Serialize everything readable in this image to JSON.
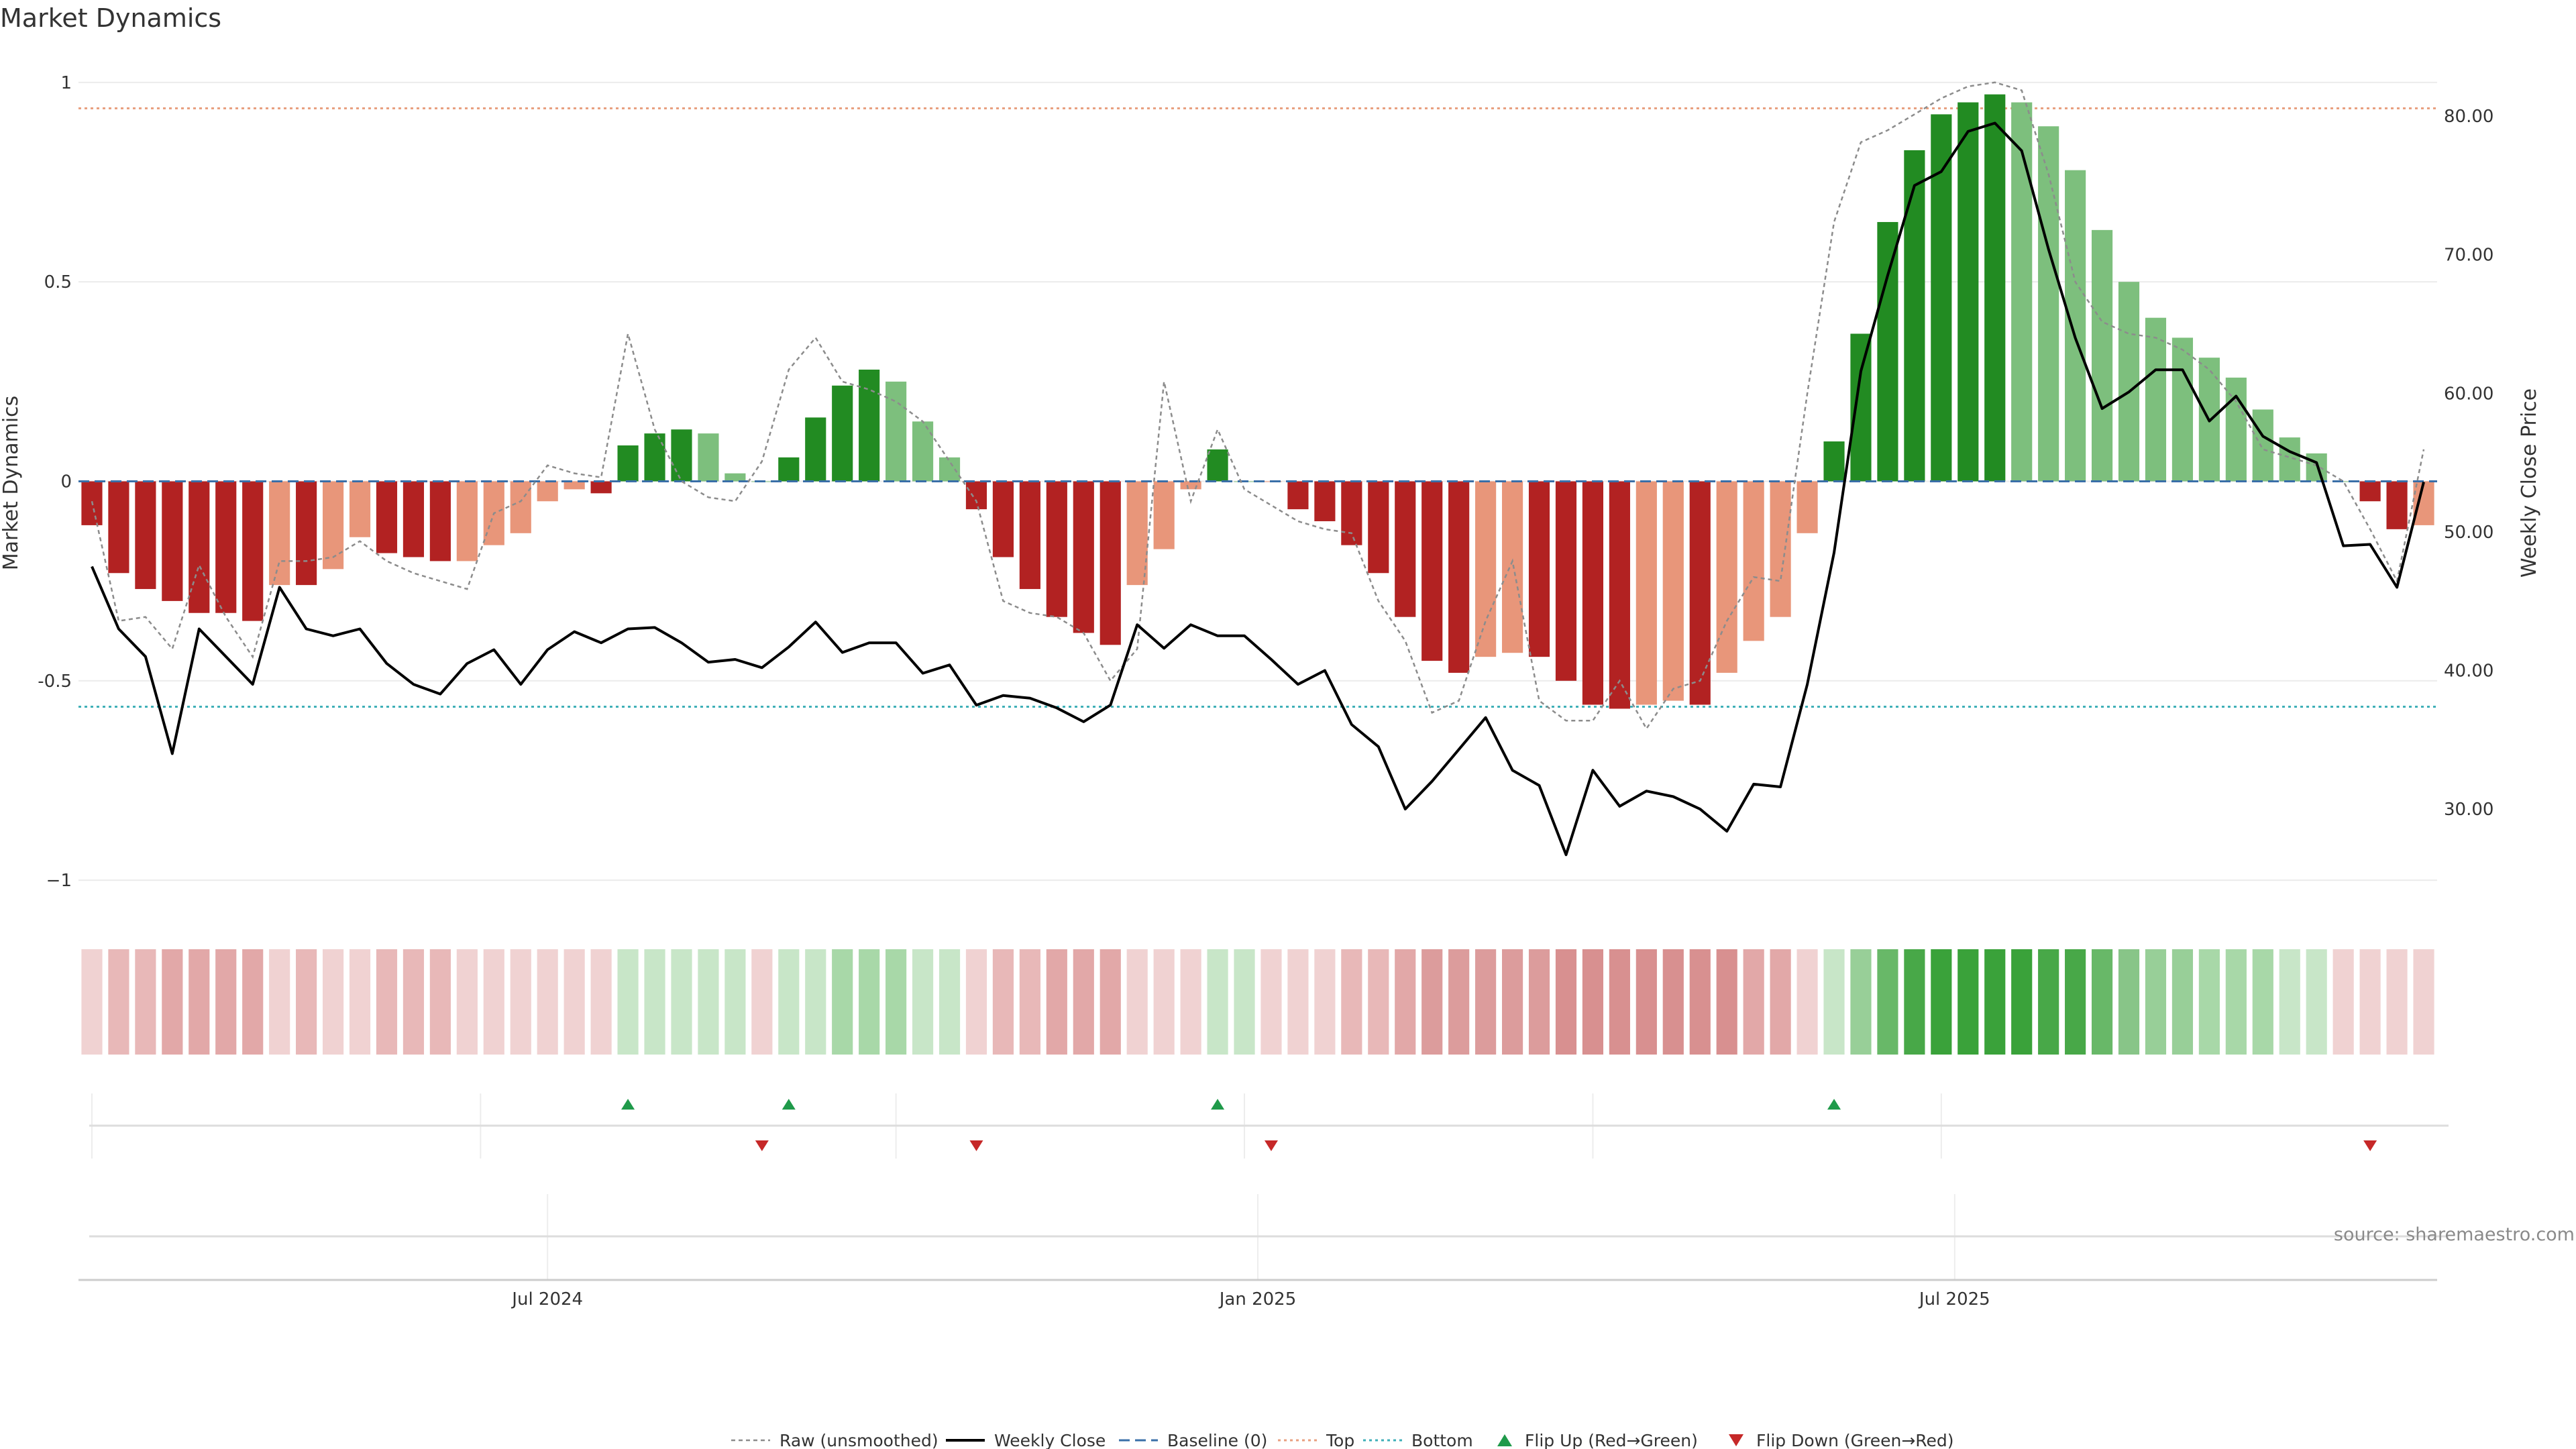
{
  "title": "Market Dynamics",
  "source": "source: sharemaestro.com",
  "chart_data": {
    "type": "bar",
    "title": "Market Dynamics",
    "ylabel_left": "Market Dynamics",
    "ylabel_right": "Weekly Close Price",
    "ylim_left": [
      -1.03,
      1.03
    ],
    "ylim_right": [
      24.0,
      83.3
    ],
    "left_ticks": [
      {
        "v": 1,
        "label": "1"
      },
      {
        "v": 0.5,
        "label": "0.5"
      },
      {
        "v": 0,
        "label": "0"
      },
      {
        "v": -0.5,
        "label": "-0.5"
      },
      {
        "v": -1,
        "label": "−1"
      }
    ],
    "right_ticks": [
      {
        "v": 80,
        "label": "80.00"
      },
      {
        "v": 70,
        "label": "70.00"
      },
      {
        "v": 60,
        "label": "60.00"
      },
      {
        "v": 50,
        "label": "50.00"
      },
      {
        "v": 40,
        "label": "40.00"
      },
      {
        "v": 30,
        "label": "30.00"
      }
    ],
    "x_ticks": [
      {
        "index": 17,
        "label": "Jul 2024"
      },
      {
        "index": 43.5,
        "label": "Jan 2025"
      },
      {
        "index": 69.5,
        "label": "Jul 2025"
      }
    ],
    "top_level": 0.935,
    "bottom_level": -0.565,
    "baseline": 0,
    "n_weeks": 88,
    "dynamics": [
      -0.11,
      -0.23,
      -0.27,
      -0.3,
      -0.33,
      -0.33,
      -0.35,
      -0.26,
      -0.26,
      -0.22,
      -0.14,
      -0.18,
      -0.19,
      -0.2,
      -0.2,
      -0.16,
      -0.13,
      -0.05,
      -0.02,
      -0.03,
      0.09,
      0.12,
      0.13,
      0.12,
      0.02,
      0.0,
      0.06,
      0.16,
      0.24,
      0.28,
      0.25,
      0.15,
      0.06,
      -0.07,
      -0.19,
      -0.27,
      -0.34,
      -0.38,
      -0.41,
      -0.26,
      -0.17,
      -0.02,
      0.08,
      0.0,
      0.0,
      -0.07,
      -0.1,
      -0.16,
      -0.23,
      -0.34,
      -0.45,
      -0.48,
      -0.44,
      -0.43,
      -0.44,
      -0.5,
      -0.56,
      -0.57,
      -0.56,
      -0.55,
      -0.56,
      -0.48,
      -0.4,
      -0.34,
      -0.13,
      0.1,
      0.37,
      0.65,
      0.83,
      0.92,
      0.95,
      0.97,
      0.95,
      0.89,
      0.78,
      0.63,
      0.5,
      0.41,
      0.36,
      0.31,
      0.26,
      0.18,
      0.11,
      0.07,
      0.0,
      -0.05,
      -0.12,
      -0.11
    ],
    "bar_colors": [
      "#b22222",
      "#b22222",
      "#b22222",
      "#b22222",
      "#b22222",
      "#b22222",
      "#b22222",
      "#e8967a",
      "#b22222",
      "#e8967a",
      "#e8967a",
      "#b22222",
      "#b22222",
      "#b22222",
      "#e8967a",
      "#e8967a",
      "#e8967a",
      "#e8967a",
      "#e8967a",
      "#b22222",
      "#228b22",
      "#228b22",
      "#228b22",
      "#7dbf7d",
      "#7dbf7d",
      "#7dbf7d",
      "#228b22",
      "#228b22",
      "#228b22",
      "#228b22",
      "#7dbf7d",
      "#7dbf7d",
      "#7dbf7d",
      "#b22222",
      "#b22222",
      "#b22222",
      "#b22222",
      "#b22222",
      "#b22222",
      "#e8967a",
      "#e8967a",
      "#e8967a",
      "#228b22",
      "#7dbf7d",
      "#e8967a",
      "#b22222",
      "#b22222",
      "#b22222",
      "#b22222",
      "#b22222",
      "#b22222",
      "#b22222",
      "#e8967a",
      "#e8967a",
      "#b22222",
      "#b22222",
      "#b22222",
      "#b22222",
      "#e8967a",
      "#e8967a",
      "#b22222",
      "#e8967a",
      "#e8967a",
      "#e8967a",
      "#e8967a",
      "#228b22",
      "#228b22",
      "#228b22",
      "#228b22",
      "#228b22",
      "#228b22",
      "#228b22",
      "#7dbf7d",
      "#7dbf7d",
      "#7dbf7d",
      "#7dbf7d",
      "#7dbf7d",
      "#7dbf7d",
      "#7dbf7d",
      "#7dbf7d",
      "#7dbf7d",
      "#7dbf7d",
      "#7dbf7d",
      "#7dbf7d",
      "#7dbf7d",
      "#b22222",
      "#b22222",
      "#e8967a"
    ],
    "raw": [
      -0.05,
      -0.35,
      -0.34,
      -0.42,
      -0.21,
      -0.34,
      -0.44,
      -0.2,
      -0.2,
      -0.19,
      -0.15,
      -0.2,
      -0.23,
      -0.25,
      -0.27,
      -0.08,
      -0.05,
      0.04,
      0.02,
      0.01,
      0.37,
      0.13,
      0.0,
      -0.04,
      -0.05,
      0.05,
      0.28,
      0.36,
      0.25,
      0.23,
      0.2,
      0.15,
      0.05,
      -0.05,
      -0.3,
      -0.33,
      -0.34,
      -0.38,
      -0.5,
      -0.42,
      0.25,
      -0.05,
      0.13,
      -0.02,
      -0.06,
      -0.1,
      -0.12,
      -0.13,
      -0.3,
      -0.4,
      -0.58,
      -0.55,
      -0.35,
      -0.2,
      -0.55,
      -0.6,
      -0.6,
      -0.5,
      -0.62,
      -0.52,
      -0.5,
      -0.35,
      -0.24,
      -0.25,
      0.22,
      0.65,
      0.85,
      0.88,
      0.92,
      0.96,
      0.99,
      1.0,
      0.98,
      0.77,
      0.5,
      0.4,
      0.37,
      0.36,
      0.33,
      0.28,
      0.2,
      0.08,
      0.06,
      0.04,
      0.0,
      -0.12,
      -0.25,
      0.08
    ],
    "weekly_close": [
      47.5,
      43.0,
      41.0,
      34.0,
      43.0,
      41.0,
      39.0,
      46.0,
      43.0,
      42.5,
      43.0,
      40.5,
      39.0,
      38.3,
      40.5,
      41.5,
      39.0,
      41.5,
      42.8,
      42.0,
      43.0,
      43.1,
      42.0,
      40.6,
      40.8,
      40.2,
      41.7,
      43.5,
      41.3,
      42.0,
      42.0,
      39.8,
      40.4,
      37.5,
      38.2,
      38.0,
      37.3,
      36.3,
      37.5,
      43.3,
      41.6,
      43.3,
      42.5,
      42.5,
      40.8,
      39.0,
      40.0,
      36.1,
      34.5,
      30.0,
      32.0,
      34.3,
      36.6,
      32.8,
      31.7,
      26.7,
      32.8,
      30.2,
      31.3,
      30.9,
      30.0,
      28.4,
      31.8,
      31.6,
      39.0,
      48.5,
      61.6,
      68.5,
      75.0,
      76.0,
      78.9,
      79.5,
      77.5,
      70.4,
      64.0,
      58.9,
      60.1,
      61.7,
      61.7,
      58.0,
      59.8,
      56.9,
      55.8,
      55.0,
      49.0,
      49.1,
      46.0,
      53.6
    ],
    "bottom_strip_colors": [
      "#f0d2d2",
      "#e8b8b8",
      "#e8b8b8",
      "#e2a8a8",
      "#e2a8a8",
      "#e2a8a8",
      "#e2a8a8",
      "#f0d2d2",
      "#e8b8b8",
      "#f0d2d2",
      "#f0d2d2",
      "#e8b8b8",
      "#e8b8b8",
      "#e8b8b8",
      "#f0d2d2",
      "#f0d2d2",
      "#f0d2d2",
      "#f0d2d2",
      "#f0d2d2",
      "#f0d2d2",
      "#c8e6c8",
      "#c8e6c8",
      "#c8e6c8",
      "#c8e6c8",
      "#c8e6c8",
      "#f0d2d2",
      "#c8e6c8",
      "#c8e6c8",
      "#a8d8a8",
      "#a8d8a8",
      "#a8d8a8",
      "#c8e6c8",
      "#c8e6c8",
      "#f0d2d2",
      "#e8b8b8",
      "#e8b8b8",
      "#e2a8a8",
      "#e2a8a8",
      "#e2a8a8",
      "#f0d2d2",
      "#f0d2d2",
      "#f0d2d2",
      "#c8e6c8",
      "#c8e6c8",
      "#f0d2d2",
      "#f0d2d2",
      "#f0d2d2",
      "#e8b8b8",
      "#e8b8b8",
      "#e2a8a8",
      "#dc9c9c",
      "#dc9c9c",
      "#dc9c9c",
      "#dc9c9c",
      "#dc9c9c",
      "#d89090",
      "#d89090",
      "#d89090",
      "#d89090",
      "#d89090",
      "#d89090",
      "#d89090",
      "#e2a8a8",
      "#e2a8a8",
      "#f0d2d2",
      "#c8e6c8",
      "#98cf98",
      "#68b868",
      "#48a848",
      "#3aa23a",
      "#3aa23a",
      "#3aa23a",
      "#3aa23a",
      "#48a848",
      "#48a848",
      "#68b868",
      "#88c588",
      "#98cf98",
      "#98cf98",
      "#a8d8a8",
      "#a8d8a8",
      "#a8d8a8",
      "#c8e6c8",
      "#c8e6c8",
      "#f0d2d2",
      "#f0d2d2",
      "#f0d2d2",
      "#f0d2d2"
    ],
    "flip_up_weeks": [
      20,
      26,
      42,
      65
    ],
    "flip_down_weeks": [
      25,
      33,
      44,
      85
    ],
    "legend": {
      "raw": "Raw (unsmoothed)",
      "close": "Weekly Close",
      "baseline": "Baseline (0)",
      "top": "Top",
      "bottom": "Bottom",
      "flip_up": "Flip Up (Red→Green)",
      "flip_down": "Flip Down (Green→Red)"
    },
    "colors": {
      "strong_red": "#b22222",
      "light_red": "#e8967a",
      "strong_green": "#228b22",
      "light_green": "#7dbf7d",
      "raw_line": "#8c8c8c",
      "close_line": "#000000",
      "baseline": "#3a6fa8",
      "top": "#e8a080",
      "bottom": "#40b0b8",
      "flip_up": "#1f9a4a",
      "flip_down": "#c62828"
    }
  }
}
